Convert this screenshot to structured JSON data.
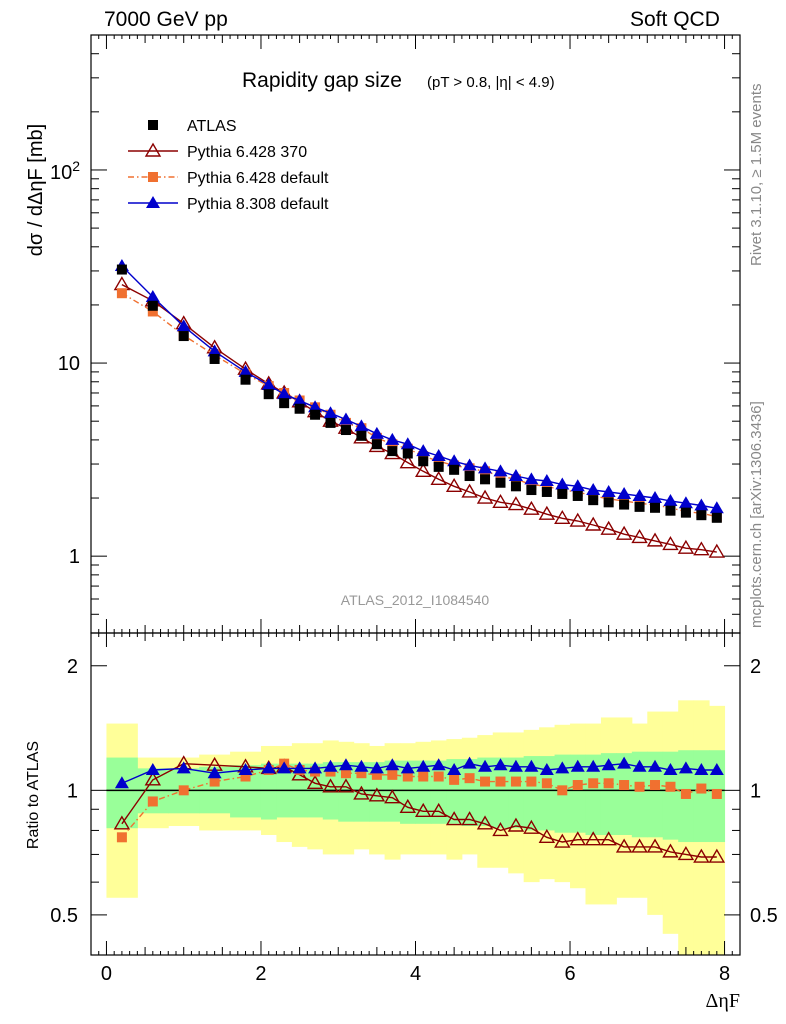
{
  "header": {
    "left": "7000 GeV pp",
    "right": "Soft QCD"
  },
  "side_labels": {
    "rivet": "Rivet 3.1.10, ≥ 1.5M events",
    "mcplots": "mcplots.cern.ch [arXiv:1306.3436]"
  },
  "chart_data": [
    {
      "type": "line",
      "title": "Rapidity gap size",
      "subtitle": "(pT > 0.8, |η| < 4.9)",
      "watermark": "ATLAS_2012_I1084540",
      "ylabel": "dσ / dΔηF [mb]",
      "yscale": "log",
      "xlim": [
        -0.2,
        8.2
      ],
      "ylim": [
        0.4,
        500
      ],
      "y_ticks": [
        "1",
        "10",
        "10^2"
      ],
      "legend_position": "top-left",
      "x": [
        0.2,
        0.6,
        1.0,
        1.4,
        1.8,
        2.1,
        2.3,
        2.5,
        2.7,
        2.9,
        3.1,
        3.3,
        3.5,
        3.7,
        3.9,
        4.1,
        4.3,
        4.5,
        4.7,
        4.9,
        5.1,
        5.3,
        5.5,
        5.7,
        5.9,
        6.1,
        6.3,
        6.5,
        6.7,
        6.9,
        7.1,
        7.3,
        7.5,
        7.7,
        7.9
      ],
      "series": [
        {
          "name": "ATLAS",
          "color": "#000000",
          "marker": "square",
          "values": [
            30.5,
            19.8,
            13.8,
            10.5,
            8.2,
            6.9,
            6.2,
            5.8,
            5.4,
            4.9,
            4.5,
            4.2,
            3.8,
            3.5,
            3.4,
            3.1,
            2.9,
            2.8,
            2.6,
            2.5,
            2.4,
            2.3,
            2.2,
            2.15,
            2.1,
            2.05,
            1.95,
            1.9,
            1.85,
            1.8,
            1.78,
            1.72,
            1.68,
            1.63,
            1.58
          ]
        },
        {
          "name": "Pythia 6.428 370",
          "color": "#8b0000",
          "marker": "open-triangle",
          "values": [
            25.5,
            21.0,
            16.0,
            12.0,
            9.3,
            7.8,
            7.0,
            6.3,
            5.6,
            5.0,
            4.6,
            4.1,
            3.7,
            3.4,
            3.05,
            2.75,
            2.5,
            2.3,
            2.15,
            2.0,
            1.9,
            1.85,
            1.75,
            1.65,
            1.57,
            1.52,
            1.45,
            1.38,
            1.3,
            1.25,
            1.2,
            1.15,
            1.1,
            1.08,
            1.05
          ]
        },
        {
          "name": "Pythia 6.428 default",
          "color": "#f07030",
          "marker": "square",
          "values": [
            23.0,
            18.5,
            13.9,
            11.0,
            8.8,
            7.6,
            7.0,
            6.4,
            5.9,
            5.4,
            4.9,
            4.6,
            4.1,
            3.8,
            3.6,
            3.3,
            3.1,
            2.95,
            2.85,
            2.75,
            2.6,
            2.5,
            2.35,
            2.3,
            2.2,
            2.15,
            2.05,
            1.98,
            1.93,
            1.88,
            1.84,
            1.78,
            1.7,
            1.67,
            1.6
          ]
        },
        {
          "name": "Pythia 8.308 default",
          "color": "#0000cc",
          "marker": "triangle",
          "values": [
            31.8,
            22.0,
            15.5,
            11.5,
            9.0,
            7.7,
            6.9,
            6.4,
            5.9,
            5.5,
            5.1,
            4.7,
            4.3,
            4.0,
            3.8,
            3.5,
            3.3,
            3.1,
            2.95,
            2.85,
            2.75,
            2.6,
            2.5,
            2.45,
            2.35,
            2.3,
            2.2,
            2.15,
            2.1,
            2.05,
            2.0,
            1.93,
            1.88,
            1.83,
            1.77
          ]
        }
      ]
    },
    {
      "type": "line",
      "ylabel": "Ratio to ATLAS",
      "xlabel": "ΔηF",
      "yscale": "log",
      "xlim": [
        -0.2,
        8.2
      ],
      "ylim": [
        0.4,
        2.4
      ],
      "x_ticks": [
        "0",
        "2",
        "4",
        "6",
        "8"
      ],
      "y_ticks": [
        "0.5",
        "1",
        "2"
      ],
      "x": [
        0.2,
        0.6,
        1.0,
        1.4,
        1.8,
        2.1,
        2.3,
        2.5,
        2.7,
        2.9,
        3.1,
        3.3,
        3.5,
        3.7,
        3.9,
        4.1,
        4.3,
        4.5,
        4.7,
        4.9,
        5.1,
        5.3,
        5.5,
        5.7,
        5.9,
        6.1,
        6.3,
        6.5,
        6.7,
        6.9,
        7.1,
        7.3,
        7.5,
        7.7,
        7.9
      ],
      "bands": {
        "bin_edges": [
          0.0,
          0.4,
          0.8,
          1.2,
          1.6,
          2.0,
          2.2,
          2.4,
          2.6,
          2.8,
          3.0,
          3.2,
          3.4,
          3.6,
          3.8,
          4.0,
          4.2,
          4.4,
          4.6,
          4.8,
          5.0,
          5.2,
          5.4,
          5.6,
          5.8,
          6.0,
          6.2,
          6.4,
          6.6,
          6.8,
          7.0,
          7.2,
          7.4,
          7.6,
          7.8,
          8.0
        ],
        "inner_color": "#99ff99",
        "outer_color": "#ffff99",
        "inner_lo": [
          0.81,
          0.88,
          0.88,
          0.88,
          0.86,
          0.85,
          0.86,
          0.86,
          0.86,
          0.85,
          0.84,
          0.84,
          0.84,
          0.84,
          0.83,
          0.83,
          0.83,
          0.83,
          0.82,
          0.82,
          0.81,
          0.81,
          0.8,
          0.8,
          0.79,
          0.79,
          0.78,
          0.78,
          0.78,
          0.77,
          0.77,
          0.76,
          0.75,
          0.75,
          0.75
        ],
        "inner_hi": [
          1.2,
          1.13,
          1.13,
          1.14,
          1.15,
          1.16,
          1.16,
          1.16,
          1.16,
          1.17,
          1.17,
          1.17,
          1.17,
          1.18,
          1.18,
          1.18,
          1.18,
          1.19,
          1.19,
          1.2,
          1.2,
          1.2,
          1.21,
          1.21,
          1.22,
          1.22,
          1.22,
          1.23,
          1.23,
          1.24,
          1.24,
          1.24,
          1.25,
          1.25,
          1.25
        ],
        "outer_lo": [
          0.55,
          0.81,
          0.82,
          0.8,
          0.8,
          0.78,
          0.75,
          0.73,
          0.72,
          0.7,
          0.7,
          0.72,
          0.7,
          0.68,
          0.7,
          0.7,
          0.7,
          0.68,
          0.7,
          0.65,
          0.65,
          0.63,
          0.6,
          0.61,
          0.6,
          0.58,
          0.53,
          0.53,
          0.55,
          0.55,
          0.5,
          0.45,
          0.35,
          0.35,
          0.35
        ],
        "outer_hi": [
          1.45,
          1.2,
          1.2,
          1.22,
          1.24,
          1.28,
          1.28,
          1.3,
          1.3,
          1.32,
          1.31,
          1.3,
          1.28,
          1.3,
          1.3,
          1.31,
          1.32,
          1.33,
          1.34,
          1.36,
          1.38,
          1.38,
          1.4,
          1.42,
          1.44,
          1.45,
          1.45,
          1.5,
          1.5,
          1.45,
          1.55,
          1.55,
          1.65,
          1.65,
          1.6
        ]
      },
      "series": [
        {
          "name": "Pythia 6.428 370",
          "color": "#8b0000",
          "marker": "open-triangle",
          "values": [
            0.83,
            1.06,
            1.16,
            1.15,
            1.14,
            1.13,
            1.14,
            1.09,
            1.04,
            1.02,
            1.02,
            0.98,
            0.97,
            0.96,
            0.91,
            0.89,
            0.89,
            0.85,
            0.85,
            0.83,
            0.8,
            0.82,
            0.81,
            0.77,
            0.75,
            0.76,
            0.76,
            0.76,
            0.73,
            0.73,
            0.73,
            0.71,
            0.7,
            0.69,
            0.69
          ]
        },
        {
          "name": "Pythia 6.428 default",
          "color": "#f07030",
          "marker": "square",
          "values": [
            0.77,
            0.94,
            1.0,
            1.05,
            1.08,
            1.12,
            1.16,
            1.12,
            1.11,
            1.11,
            1.1,
            1.1,
            1.09,
            1.09,
            1.08,
            1.08,
            1.08,
            1.06,
            1.07,
            1.05,
            1.05,
            1.05,
            1.05,
            1.04,
            1.0,
            1.03,
            1.04,
            1.04,
            1.03,
            1.02,
            1.03,
            1.02,
            0.98,
            1.01,
            0.98
          ]
        },
        {
          "name": "Pythia 8.308 default",
          "color": "#0000cc",
          "marker": "triangle",
          "values": [
            1.04,
            1.12,
            1.13,
            1.1,
            1.12,
            1.13,
            1.13,
            1.13,
            1.13,
            1.14,
            1.15,
            1.14,
            1.13,
            1.15,
            1.13,
            1.14,
            1.15,
            1.12,
            1.16,
            1.14,
            1.15,
            1.14,
            1.14,
            1.12,
            1.13,
            1.14,
            1.14,
            1.15,
            1.16,
            1.14,
            1.14,
            1.12,
            1.13,
            1.12,
            1.12
          ]
        }
      ]
    }
  ]
}
